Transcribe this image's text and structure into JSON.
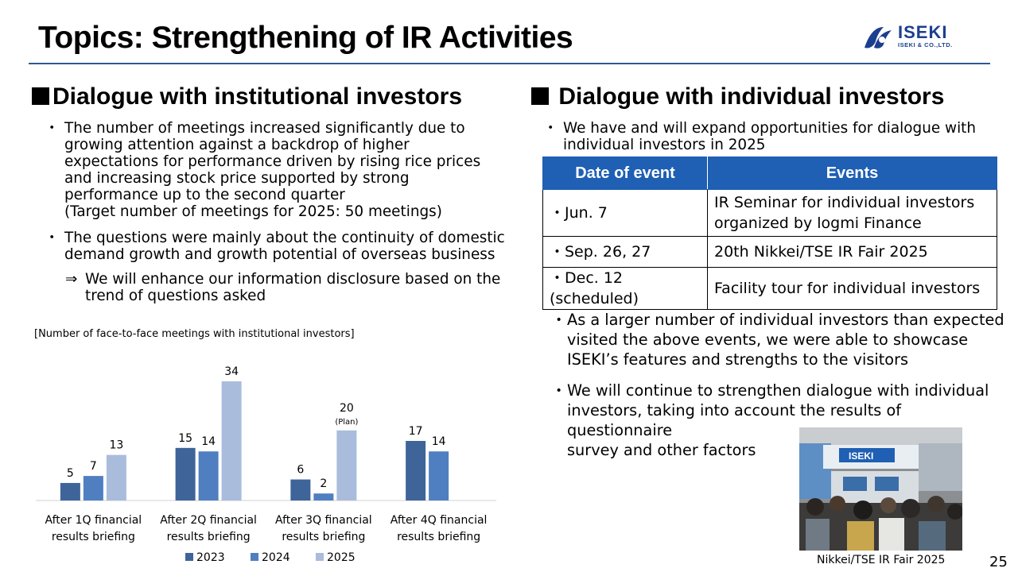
{
  "header": {
    "title": "Topics: Strengthening of IR Activities",
    "logo": {
      "name": "ISEKI",
      "sub": "ISEKI & CO.,LTD."
    }
  },
  "left": {
    "heading": "Dialogue with institutional investors",
    "bullets": [
      {
        "marker": "・",
        "text": "The number of meetings increased significantly due to\ngrowing attention against a backdrop of higher\nexpectations for performance driven by rising rice prices\nand increasing stock price supported by strong\nperformance up to the second quarter\n(Target number of meetings for 2025: 50 meetings)"
      },
      {
        "marker": "・",
        "text": "The questions were mainly about the continuity of domestic\ndemand growth and growth potential of overseas business"
      }
    ],
    "arrow": {
      "marker": "⇒",
      "text": "We will enhance our information disclosure based on the\ntrend of questions asked"
    },
    "chart_caption": "[Number of face-to-face meetings with institutional investors]"
  },
  "chart_data": {
    "type": "bar",
    "title": "[Number of face-to-face meetings with institutional investors]",
    "categories": [
      [
        "After 1Q financial",
        "results briefing"
      ],
      [
        "After 2Q financial",
        "results briefing"
      ],
      [
        "After 3Q financial",
        "results briefing"
      ],
      [
        "After 4Q financial",
        "results briefing"
      ]
    ],
    "series": [
      {
        "name": "2023",
        "color": "#3f6499",
        "values": [
          5,
          15,
          6,
          17
        ]
      },
      {
        "name": "2024",
        "color": "#4f7fc0",
        "values": [
          7,
          14,
          2,
          14
        ]
      },
      {
        "name": "2025",
        "color": "#a9bcdc",
        "values": [
          13,
          34,
          20,
          null
        ]
      }
    ],
    "annotations": [
      {
        "category": 2,
        "series": 2,
        "text": "(Plan)"
      }
    ],
    "ylim": [
      0,
      34
    ],
    "grid": false,
    "legend": "bottom"
  },
  "right": {
    "heading": "Dialogue with individual investors",
    "intro": {
      "marker": "・",
      "text": "We have and will expand opportunities for dialogue with\nindividual investors in 2025"
    },
    "table": {
      "headers": [
        "Date of event",
        "Events"
      ],
      "rows": [
        {
          "date": "・Jun. 7",
          "event": "IR Seminar for individual investors\norganized by logmi Finance"
        },
        {
          "date": "・Sep. 26, 27",
          "event": "20th Nikkei/TSE IR Fair 2025"
        },
        {
          "date": "・Dec. 12 (scheduled)",
          "event": "Facility tour for individual investors"
        }
      ]
    },
    "bullets": [
      {
        "marker": "・",
        "text": "As a larger number of individual investors than expected\nvisited the above events, we were able to showcase\nISEKI’s features and strengths to the visitors"
      },
      {
        "marker": "・",
        "text": "We will continue to strengthen dialogue with individual\ninvestors, taking into account the results of questionnaire\nsurvey and other factors"
      }
    ],
    "photo_caption": "Nikkei/TSE IR Fair 2025",
    "photo_sign": "ISEKI"
  },
  "page_number": "25"
}
